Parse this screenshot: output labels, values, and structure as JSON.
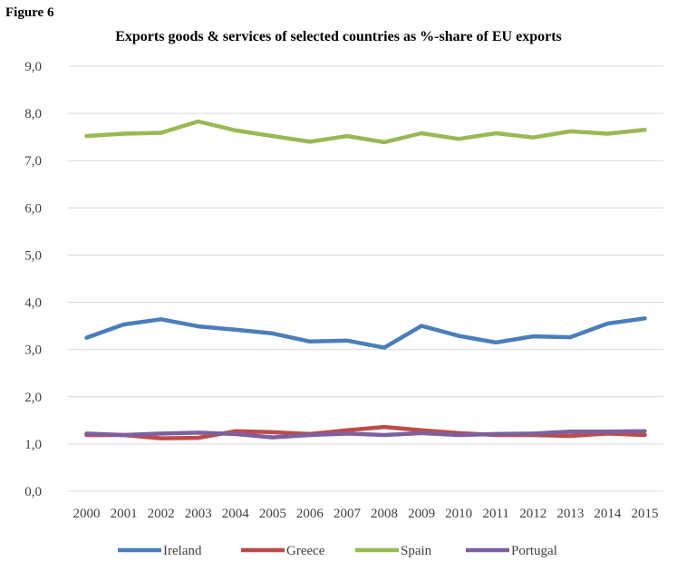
{
  "figure_label": "Figure 6",
  "chart_data": {
    "type": "line",
    "title": "Exports goods & services of selected countries as %-share of EU exports",
    "xlabel": "",
    "ylabel": "",
    "categories": [
      "2000",
      "2001",
      "2002",
      "2003",
      "2004",
      "2005",
      "2006",
      "2007",
      "2008",
      "2009",
      "2010",
      "2011",
      "2012",
      "2013",
      "2014",
      "2015"
    ],
    "ylim": [
      0,
      9
    ],
    "yticks": [
      "0,0",
      "1,0",
      "2,0",
      "3,0",
      "4,0",
      "5,0",
      "6,0",
      "7,0",
      "8,0",
      "9,0"
    ],
    "grid": true,
    "legend": "bottom",
    "series": [
      {
        "name": "Ireland",
        "color": "#4a7ebb",
        "values": [
          3.25,
          3.53,
          3.64,
          3.49,
          3.42,
          3.34,
          3.17,
          3.19,
          3.04,
          3.5,
          3.29,
          3.15,
          3.28,
          3.26,
          3.55,
          3.66
        ]
      },
      {
        "name": "Greece",
        "color": "#be4b48",
        "values": [
          1.19,
          1.19,
          1.12,
          1.13,
          1.27,
          1.25,
          1.21,
          1.29,
          1.36,
          1.29,
          1.23,
          1.19,
          1.19,
          1.17,
          1.22,
          1.19
        ]
      },
      {
        "name": "Spain",
        "color": "#98b954",
        "values": [
          7.52,
          7.57,
          7.59,
          7.83,
          7.64,
          7.52,
          7.4,
          7.52,
          7.39,
          7.58,
          7.46,
          7.58,
          7.49,
          7.62,
          7.57,
          7.65
        ]
      },
      {
        "name": "Portugal",
        "color": "#7d60a0",
        "values": [
          1.22,
          1.19,
          1.22,
          1.24,
          1.21,
          1.14,
          1.19,
          1.22,
          1.19,
          1.23,
          1.19,
          1.21,
          1.22,
          1.26,
          1.26,
          1.27
        ]
      }
    ]
  }
}
